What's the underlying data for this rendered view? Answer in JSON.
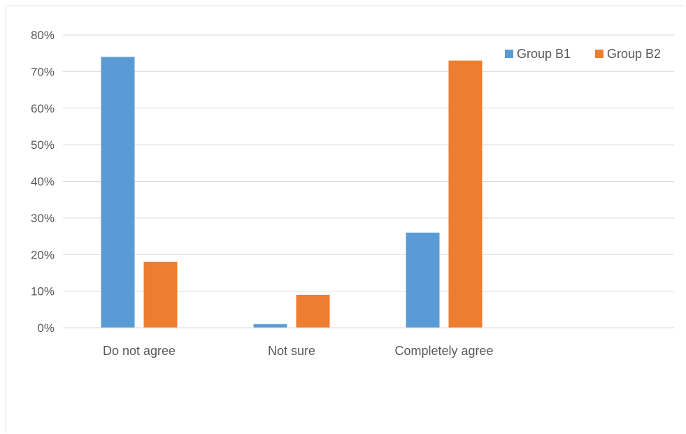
{
  "chart_data": {
    "type": "bar",
    "categories": [
      "Do not agree",
      "Not sure",
      "Completely agree"
    ],
    "series": [
      {
        "name": "Group B1",
        "color": "#5b9bd5",
        "values": [
          74,
          1,
          26
        ]
      },
      {
        "name": "Group B2",
        "color": "#ed7d31",
        "values": [
          18,
          9,
          73
        ]
      }
    ],
    "ylim": [
      0,
      80
    ],
    "yticks": [
      "0%",
      "10%",
      "20%",
      "30%",
      "40%",
      "50%",
      "60%",
      "70%",
      "80%"
    ],
    "grid": true,
    "legend_position": "top-right"
  }
}
